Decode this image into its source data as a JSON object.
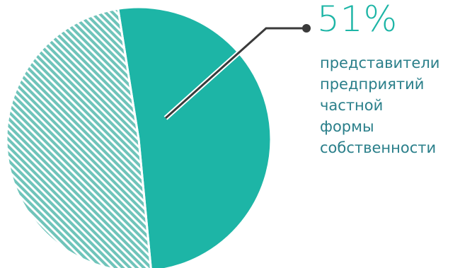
{
  "chart_data": {
    "type": "pie",
    "slices": [
      {
        "label": "представители предприятий частной формы собственности",
        "value": 51,
        "color": "#1db5a6",
        "pattern": "solid"
      },
      {
        "label": "",
        "value": 49,
        "color": "#6fc4ba",
        "pattern": "hatched"
      }
    ],
    "callout": {
      "value_text": "51%",
      "label_lines": [
        "представители",
        "предприятий",
        "частной",
        "формы",
        "собственности"
      ]
    },
    "legend": "none"
  }
}
